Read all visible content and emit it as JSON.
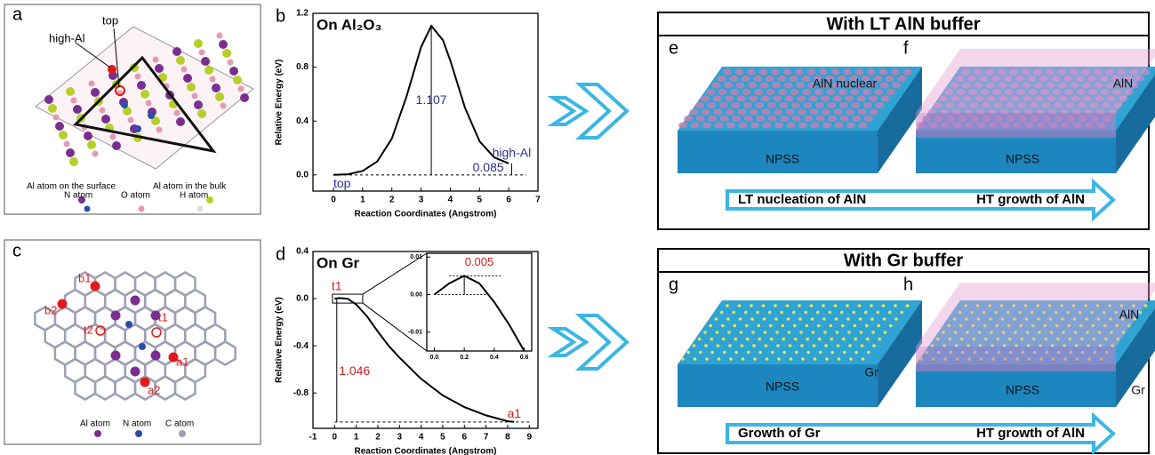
{
  "chart_data": [
    {
      "type": "line",
      "letter": "b",
      "title": "On Al₂O₃",
      "x_label": "Reaction Coordinates (Angstrom)",
      "y_label": "Relative Energy (eV)",
      "x": [
        0,
        0.5,
        1,
        1.5,
        2,
        2.5,
        3,
        3.35,
        3.75,
        4,
        4.5,
        5,
        5.5,
        6
      ],
      "values": [
        0,
        0.005,
        0.03,
        0.1,
        0.27,
        0.58,
        0.95,
        1.107,
        1.0,
        0.85,
        0.5,
        0.25,
        0.13,
        0.085
      ],
      "color": "#000000",
      "xlim": [
        -0.7,
        7
      ],
      "xticks": [
        0,
        1,
        2,
        3,
        4,
        5,
        6,
        7
      ],
      "ylim": [
        -0.12,
        1.2
      ],
      "yticks": [
        {
          "value": 0,
          "label": "0.0"
        },
        0.4,
        0.8,
        1.2
      ],
      "annotations": [
        "1.107",
        "0.085",
        "top",
        "high-Al"
      ]
    },
    {
      "type": "line",
      "letter": "d",
      "title": "On Gr",
      "x_label": "Reaction Coordinates (Angstrom)",
      "y_label": "Relative Energy (eV)",
      "x": [
        0,
        0.2,
        0.6,
        1,
        1.5,
        2,
        2.5,
        3,
        4,
        5,
        6,
        7,
        8,
        8.3
      ],
      "values": [
        0,
        0.005,
        0,
        -0.05,
        -0.15,
        -0.28,
        -0.4,
        -0.5,
        -0.68,
        -0.82,
        -0.92,
        -0.99,
        -1.04,
        -1.046
      ],
      "color": "#000000",
      "xlim": [
        -1,
        9.4
      ],
      "xticks": [
        -1,
        0,
        1,
        2,
        3,
        4,
        5,
        6,
        7,
        8,
        9
      ],
      "ylim": [
        -1.1,
        0.4
      ],
      "yticks": [
        0.4,
        {
          "value": 0,
          "label": "0.0"
        },
        -0.4,
        -0.8
      ],
      "annotations": [
        "t1",
        "1.046",
        "a1"
      ],
      "inset": {
        "type": "line",
        "x": [
          0,
          0.1,
          0.2,
          0.3,
          0.4,
          0.5,
          0.6
        ],
        "values": [
          0,
          0.003,
          0.005,
          0.003,
          -0.002,
          -0.008,
          -0.015
        ],
        "color": "#000000",
        "xlim": [
          -0.05,
          0.65
        ],
        "xticks": [
          {
            "value": 0,
            "label": "0.0"
          },
          0.2,
          0.4,
          0.6
        ],
        "ylim": [
          -0.015,
          0.011
        ],
        "yticks": [
          -0.01,
          {
            "value": 0,
            "label": "0.00"
          },
          0.01
        ],
        "annotations": [
          "0.005"
        ]
      }
    }
  ],
  "panel_a": {
    "letter": "a",
    "labels": [
      "high-Al",
      "top"
    ],
    "legend": [
      "Al atom on the surface",
      "Al atom in the bulk",
      "N atom",
      "O atom",
      "H atom"
    ]
  },
  "panel_c": {
    "letter": "c",
    "labels": [
      "b1",
      "b2",
      "t1",
      "t2",
      "a1",
      "a2"
    ],
    "legend": [
      "Al atom",
      "N atom",
      "C atom"
    ]
  },
  "box_top": {
    "title": "With LT AlN buffer",
    "letters": [
      "e",
      "f"
    ],
    "labels": [
      "AlN nuclear",
      "NPSS",
      "AlN",
      "NPSS"
    ],
    "arrow": [
      "LT nucleation of AlN",
      "HT growth of AlN"
    ]
  },
  "box_bottom": {
    "title": "With Gr buffer",
    "letters": [
      "g",
      "h"
    ],
    "labels": [
      "Gr",
      "NPSS",
      "AlN",
      "NPSS",
      "Gr"
    ],
    "arrow": [
      "Growth of Gr",
      "HT growth of AlN"
    ]
  }
}
